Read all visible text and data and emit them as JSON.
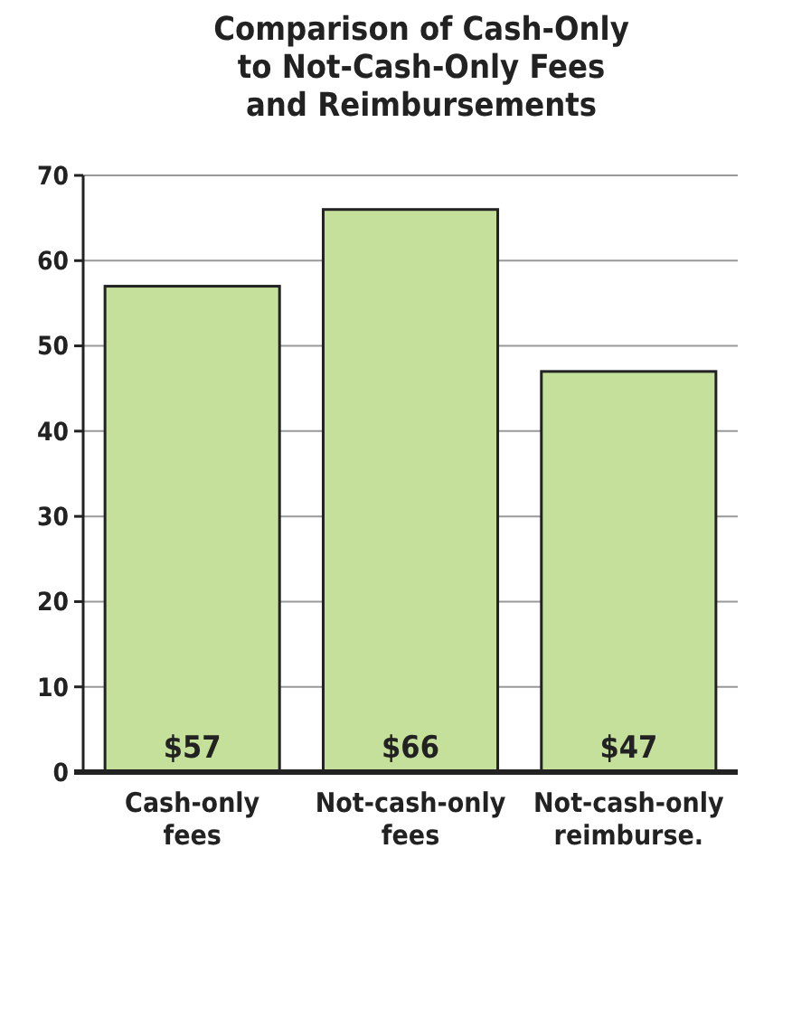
{
  "chart_data": {
    "type": "bar",
    "title": "Comparison of Cash-Only to Not-Cash-Only Fees and Reimbursements",
    "categories": [
      "Cash-only fees",
      "Not-cash-only fees",
      "Not-cash-only reimburse."
    ],
    "values": [
      57,
      66,
      47
    ],
    "color": "#c5e09b",
    "value_labels": [
      "$57",
      "$66",
      "$47"
    ],
    "ylim": [
      0,
      70
    ],
    "yticks": [
      0,
      10,
      20,
      30,
      40,
      50,
      60,
      70
    ],
    "grid": "y"
  }
}
